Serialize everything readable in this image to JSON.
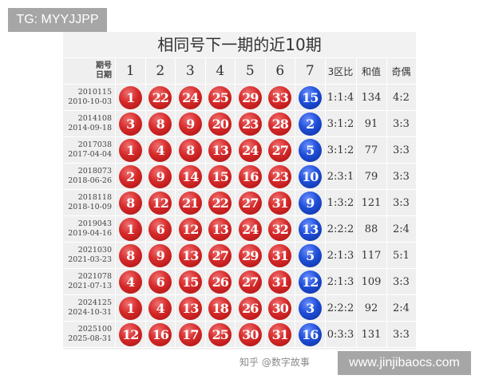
{
  "tg_label": "TG: MYYJJPP",
  "site_label": "www.jinjibaocs.com",
  "watermark": "知乎 @数字故事",
  "colors": {
    "red_ball": "#d62a2a",
    "blue_ball": "#1f4fd8",
    "table_bg": "#efefef"
  },
  "table": {
    "title": "相同号下一期的近10期",
    "header": {
      "issue": "期号",
      "date": "日期",
      "cols": [
        "1",
        "2",
        "3",
        "4",
        "5",
        "6",
        "7"
      ],
      "ratio": "3区比",
      "sum": "和值",
      "odd_even": "奇偶"
    },
    "rows": [
      {
        "issue": "2010115",
        "date": "2010-10-03",
        "red": [
          "1",
          "22",
          "24",
          "25",
          "29",
          "33"
        ],
        "blue": "15",
        "ratio": "1:1:4",
        "sum": "134",
        "odd_even": "4:2"
      },
      {
        "issue": "2014108",
        "date": "2014-09-18",
        "red": [
          "3",
          "8",
          "9",
          "20",
          "23",
          "28"
        ],
        "blue": "2",
        "ratio": "3:1:2",
        "sum": "91",
        "odd_even": "3:3"
      },
      {
        "issue": "2017038",
        "date": "2017-04-04",
        "red": [
          "1",
          "4",
          "8",
          "13",
          "24",
          "27"
        ],
        "blue": "5",
        "ratio": "3:1:2",
        "sum": "77",
        "odd_even": "3:3"
      },
      {
        "issue": "2018073",
        "date": "2018-06-26",
        "red": [
          "2",
          "9",
          "14",
          "15",
          "16",
          "23"
        ],
        "blue": "10",
        "ratio": "2:3:1",
        "sum": "79",
        "odd_even": "3:3"
      },
      {
        "issue": "2018118",
        "date": "2018-10-09",
        "red": [
          "8",
          "12",
          "21",
          "22",
          "27",
          "31"
        ],
        "blue": "9",
        "ratio": "1:3:2",
        "sum": "121",
        "odd_even": "3:3"
      },
      {
        "issue": "2019043",
        "date": "2019-04-16",
        "red": [
          "1",
          "6",
          "12",
          "13",
          "24",
          "32"
        ],
        "blue": "13",
        "ratio": "2:2:2",
        "sum": "88",
        "odd_even": "2:4"
      },
      {
        "issue": "2021030",
        "date": "2021-03-23",
        "red": [
          "8",
          "9",
          "13",
          "27",
          "29",
          "31"
        ],
        "blue": "5",
        "ratio": "2:1:3",
        "sum": "117",
        "odd_even": "5:1"
      },
      {
        "issue": "2021078",
        "date": "2021-07-13",
        "red": [
          "4",
          "6",
          "15",
          "26",
          "27",
          "31"
        ],
        "blue": "12",
        "ratio": "2:1:3",
        "sum": "109",
        "odd_even": "3:3"
      },
      {
        "issue": "2024125",
        "date": "2024-10-31",
        "red": [
          "1",
          "4",
          "13",
          "18",
          "26",
          "30"
        ],
        "blue": "3",
        "ratio": "2:2:2",
        "sum": "92",
        "odd_even": "2:4"
      },
      {
        "issue": "2025100",
        "date": "2025-08-31",
        "red": [
          "12",
          "16",
          "17",
          "25",
          "30",
          "31"
        ],
        "blue": "16",
        "ratio": "0:3:3",
        "sum": "131",
        "odd_even": "3:3"
      }
    ]
  }
}
